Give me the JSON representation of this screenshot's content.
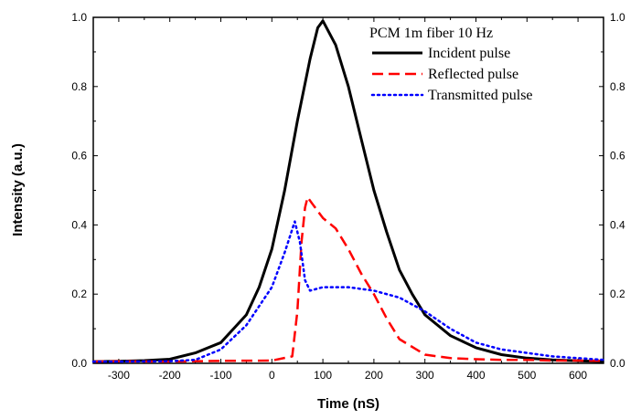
{
  "chart_data": {
    "type": "line",
    "title": "PCM 1m fiber 10 Hz",
    "xlabel": "Time (nS)",
    "ylabel": "Intensity (a.u.)",
    "xlim": [
      -350,
      650
    ],
    "ylim": [
      0,
      1.0
    ],
    "x_ticks": [
      -300,
      -200,
      -100,
      0,
      100,
      200,
      300,
      400,
      500,
      600
    ],
    "y_ticks": [
      0.0,
      0.2,
      0.4,
      0.6,
      0.8,
      1.0
    ],
    "x_tick_labels": [
      "-300",
      "-200",
      "-100",
      "0",
      "100",
      "200",
      "300",
      "400",
      "500",
      "600"
    ],
    "y_tick_labels": [
      "0.0",
      "0.2",
      "0.4",
      "0.6",
      "0.8",
      "1.0"
    ],
    "grid": false,
    "legend_position": "top-right",
    "series": [
      {
        "name": "Incident pulse",
        "color": "#000000",
        "style": "solid",
        "x": [
          -350,
          -300,
          -250,
          -200,
          -150,
          -100,
          -50,
          -25,
          0,
          25,
          50,
          75,
          90,
          100,
          125,
          150,
          175,
          200,
          225,
          250,
          275,
          300,
          350,
          400,
          450,
          500,
          550,
          600,
          650
        ],
        "y": [
          0.005,
          0.006,
          0.008,
          0.012,
          0.03,
          0.06,
          0.14,
          0.22,
          0.33,
          0.5,
          0.7,
          0.88,
          0.97,
          0.99,
          0.92,
          0.8,
          0.65,
          0.5,
          0.38,
          0.27,
          0.2,
          0.14,
          0.08,
          0.045,
          0.025,
          0.015,
          0.01,
          0.007,
          0.005
        ]
      },
      {
        "name": "Reflected pulse",
        "color": "#ff0000",
        "style": "dashed",
        "x": [
          -350,
          -300,
          -200,
          -100,
          0,
          40,
          50,
          58,
          65,
          70,
          80,
          100,
          125,
          150,
          175,
          200,
          225,
          250,
          300,
          350,
          400,
          450,
          500,
          550,
          600,
          650
        ],
        "y": [
          0.005,
          0.006,
          0.005,
          0.007,
          0.008,
          0.02,
          0.15,
          0.35,
          0.45,
          0.48,
          0.46,
          0.42,
          0.39,
          0.33,
          0.26,
          0.2,
          0.13,
          0.07,
          0.025,
          0.015,
          0.012,
          0.01,
          0.01,
          0.008,
          0.008,
          0.007
        ]
      },
      {
        "name": "Transmitted pulse",
        "color": "#0000ff",
        "style": "dotted",
        "x": [
          -350,
          -300,
          -200,
          -150,
          -100,
          -50,
          0,
          25,
          45,
          55,
          65,
          75,
          100,
          125,
          150,
          200,
          250,
          300,
          350,
          400,
          450,
          500,
          550,
          600,
          650
        ],
        "y": [
          0.005,
          0.005,
          0.006,
          0.01,
          0.04,
          0.11,
          0.22,
          0.32,
          0.41,
          0.35,
          0.24,
          0.21,
          0.22,
          0.22,
          0.22,
          0.21,
          0.19,
          0.15,
          0.1,
          0.06,
          0.04,
          0.03,
          0.02,
          0.015,
          0.01
        ]
      }
    ]
  }
}
